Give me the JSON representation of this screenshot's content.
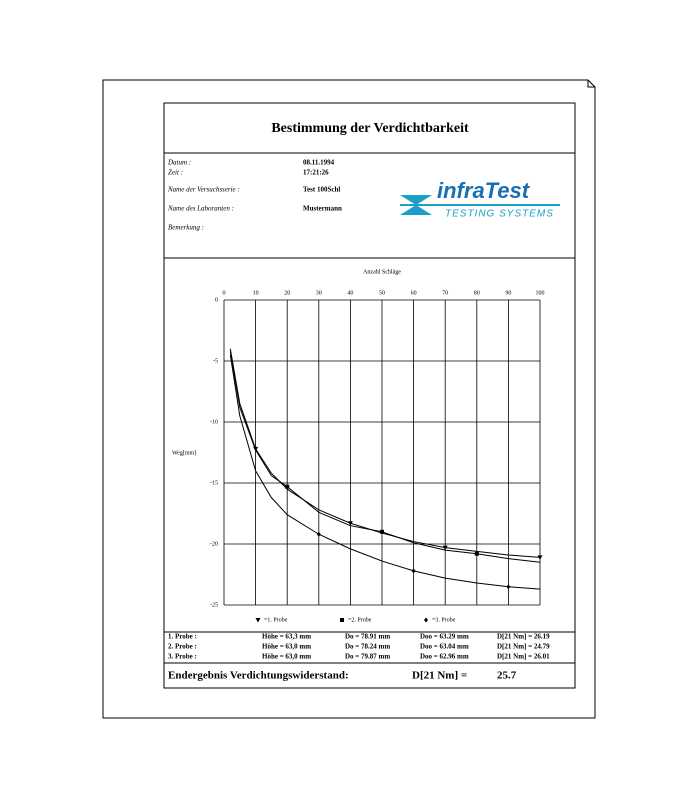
{
  "header": {
    "title": "Bestimmung der Verdichtbarkeit"
  },
  "info": [
    {
      "label": "Datum :",
      "value": "08.11.1994"
    },
    {
      "label": "Zeit :",
      "value": "17:21:26"
    },
    {
      "label": "Name der Versuchsserie :",
      "value": "Test  100Schl"
    },
    {
      "label": "Name des Laboranten :",
      "value": "Mustermann"
    },
    {
      "label": "Bemerkung :"
    }
  ],
  "logo": {
    "name": "infraTest",
    "tagline": "TESTING SYSTEMS"
  },
  "chart_data": {
    "type": "line",
    "x_label": "Anzahl Schläge",
    "y_label": "Weg[mm]",
    "xlim": [
      0,
      100
    ],
    "xticks": [
      0,
      10,
      20,
      30,
      40,
      50,
      60,
      70,
      80,
      90,
      100
    ],
    "ylim": [
      -25,
      0
    ],
    "yticks": [
      0,
      -5,
      -10,
      -15,
      -20,
      -25
    ],
    "grid": true,
    "x": [
      2,
      5,
      10,
      15,
      20,
      30,
      40,
      50,
      60,
      70,
      80,
      90,
      100
    ],
    "series": [
      {
        "name": "=1. Probe",
        "color": "#000000",
        "values": [
          -4,
          -8.5,
          -12.2,
          -14.2,
          -15.5,
          -17.2,
          -18.3,
          -19.1,
          -19.8,
          -20.3,
          -20.6,
          -20.9,
          -21.1
        ]
      },
      {
        "name": "=2. Probe",
        "color": "#000000",
        "values": [
          -4.2,
          -8.8,
          -12.3,
          -14.4,
          -15.3,
          -17.4,
          -18.5,
          -19.0,
          -19.9,
          -20.5,
          -20.8,
          -21.2,
          -21.5
        ]
      },
      {
        "name": "=3. Probe",
        "color": "#000000",
        "values": [
          -4.5,
          -9.5,
          -14,
          -16.2,
          -17.6,
          -19.2,
          -20.4,
          -21.4,
          -22.2,
          -22.8,
          -23.2,
          -23.5,
          -23.7
        ]
      }
    ]
  },
  "results": {
    "rows": [
      [
        "1. Probe :",
        "Höhe =  63,3 mm",
        "Do = 78.91 mm",
        "Doo = 63.29 mm",
        "D[21 Nm] = 26.19"
      ],
      [
        "2. Probe :",
        "Höhe =  63,0 mm",
        "Do = 78.24 mm",
        "Doo = 63.04 mm",
        "D[21 Nm] = 24.79"
      ],
      [
        "3. Probe :",
        "Höhe =  63,0 mm",
        "Do = 79.87 mm",
        "Doo = 62.96 mm",
        "D[21 Nm] = 26.01"
      ]
    ]
  },
  "final": {
    "label": "Endergebnis Verdichtungswiderstand:",
    "unit": "D[21 Nm]   =",
    "value": "25.7"
  }
}
